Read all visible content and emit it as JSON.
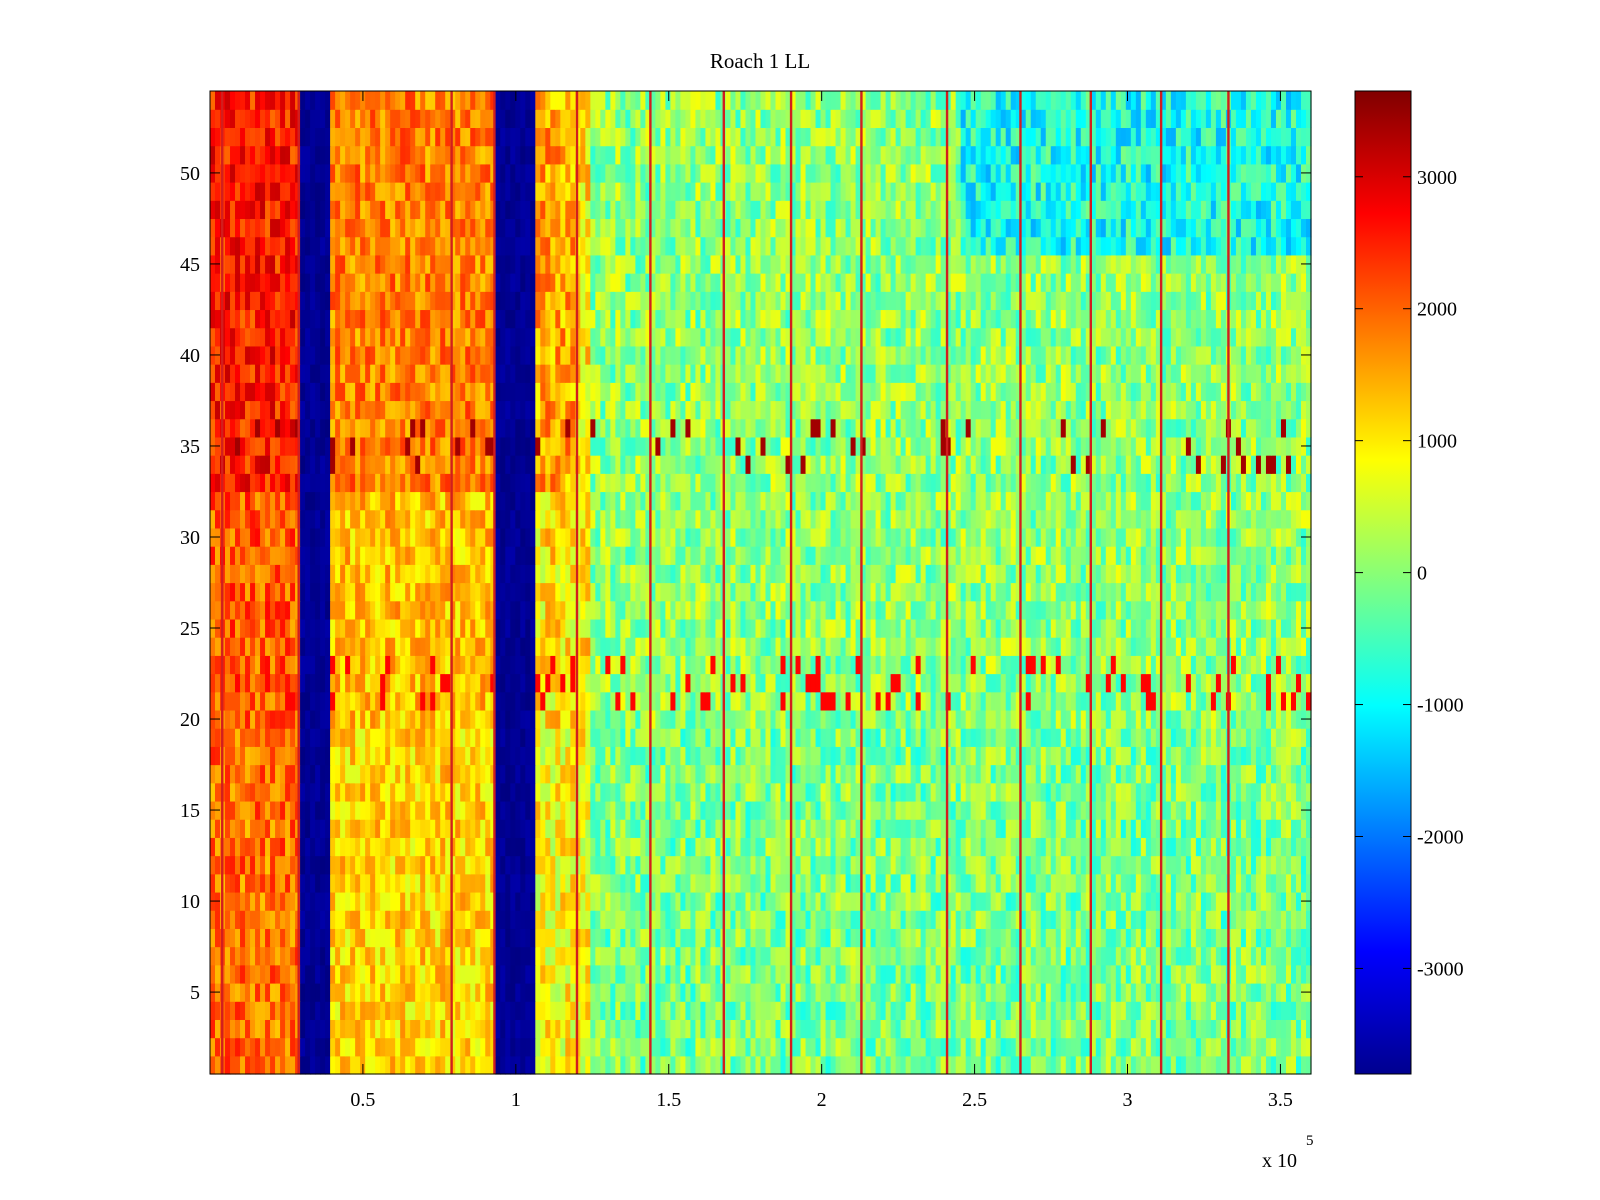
{
  "chart_data": {
    "type": "heatmap",
    "title": "Roach 1 LL",
    "xlabel": "",
    "ylabel": "",
    "x_multiplier_label": "x 10",
    "x_multiplier_exponent": "5",
    "xlim": [
      0,
      3.6
    ],
    "ylim": [
      0.5,
      54.5
    ],
    "x_ticks": [
      0.5,
      1,
      1.5,
      2,
      2.5,
      3,
      3.5
    ],
    "x_tick_labels": [
      "0.5",
      "1",
      "1.5",
      "2",
      "2.5",
      "3",
      "3.5"
    ],
    "y_ticks": [
      5,
      10,
      15,
      20,
      25,
      30,
      35,
      40,
      45,
      50
    ],
    "y_tick_labels": [
      "5",
      "10",
      "15",
      "20",
      "25",
      "30",
      "35",
      "40",
      "45",
      "50"
    ],
    "rows": 54,
    "colorbar": {
      "colormap": "jet",
      "clim": [
        -3800,
        3650
      ],
      "ticks": [
        -3000,
        -2000,
        -1000,
        0,
        1000,
        2000,
        3000
      ],
      "tick_labels": [
        "-3000",
        "-2000",
        "-1000",
        "0",
        "1000",
        "2000",
        "3000"
      ]
    },
    "features": {
      "blue_stripes_x": [
        [
          0.29,
          0.4
        ],
        [
          0.94,
          1.06
        ]
      ],
      "hot_region_x": [
        0.0,
        0.29
      ],
      "hot_rows_range": [
        33,
        54
      ],
      "spike_rows_range": [
        34,
        36
      ],
      "burst_rows_range": [
        21,
        23
      ],
      "red_vertical_lines_x": [
        0.04,
        0.29,
        0.79,
        0.93,
        1.2,
        1.44,
        1.68,
        1.9,
        2.13,
        2.41,
        2.65,
        2.88,
        3.11,
        3.33
      ]
    }
  }
}
